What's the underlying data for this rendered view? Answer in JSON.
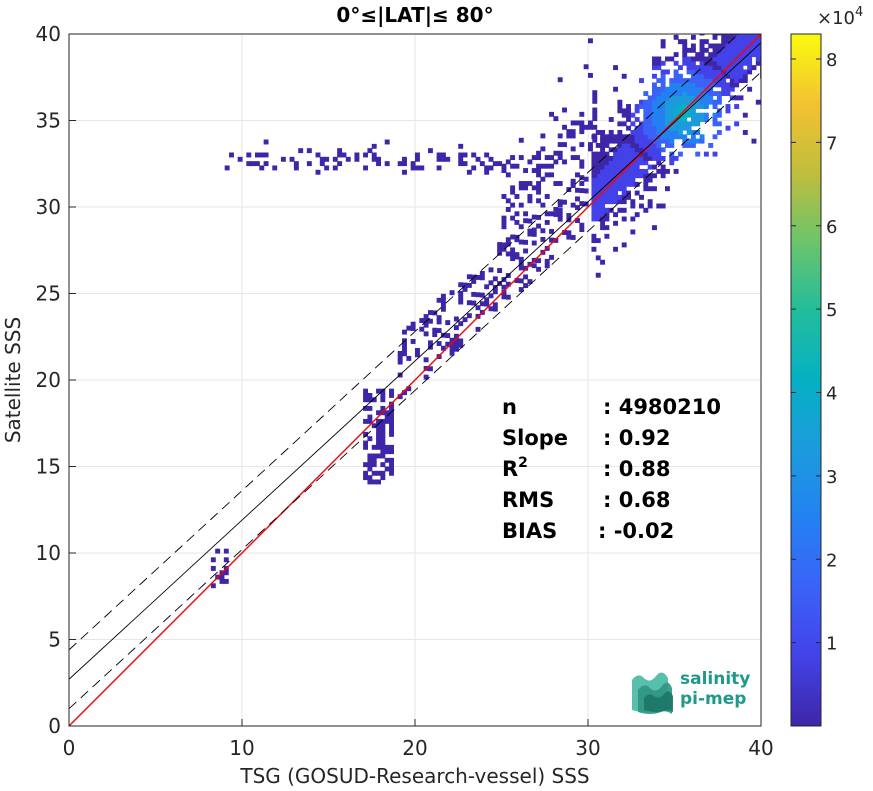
{
  "chart_data": {
    "type": "heatmap",
    "title": "0°≤|LAT|≤ 80°",
    "xlabel": "TSG (GOSUD-Research-vessel) SSS",
    "ylabel": "Satellite SSS",
    "xlim": [
      0,
      40
    ],
    "ylim": [
      0,
      40
    ],
    "xticks": [
      0,
      10,
      20,
      30,
      40
    ],
    "yticks": [
      0,
      5,
      10,
      15,
      20,
      25,
      30,
      35,
      40
    ],
    "grid": true,
    "colormap": "parula",
    "colorbar": {
      "range": [
        0,
        83000
      ],
      "ticks": [
        1,
        2,
        3,
        4,
        5,
        6,
        7,
        8
      ],
      "multiplier": "×10",
      "exponent": "4"
    },
    "lines": [
      {
        "kind": "identity",
        "color": "#ff0000",
        "slope": 1,
        "intercept": 0
      },
      {
        "kind": "regression",
        "color": "#000000",
        "style": "solid",
        "slope": 0.92,
        "intercept": 2.7
      },
      {
        "kind": "regression-upper",
        "color": "#000000",
        "style": "dashed",
        "slope": 0.92,
        "intercept": 4.4
      },
      {
        "kind": "regression-lower",
        "color": "#000000",
        "style": "dashed",
        "slope": 0.92,
        "intercept": 1.0
      }
    ],
    "density_regions": [
      {
        "x": [
          30.2,
          40
        ],
        "y_center_offset": 0.6,
        "spread": 3.0,
        "weight": 1.0
      },
      {
        "x": [
          25,
          30.5
        ],
        "y_center_offset": 4.5,
        "spread": 2.5,
        "weight": 0.35
      },
      {
        "x": [
          9,
          25
        ],
        "y_center": 32.6,
        "spread": 0.6,
        "weight": 0.15
      },
      {
        "x": [
          17,
          18.6
        ],
        "y_range": [
          14,
          19.5
        ],
        "weight": 0.3
      },
      {
        "x": [
          8.2,
          9.0
        ],
        "y_range": [
          8,
          10.2
        ],
        "weight": 0.2
      }
    ],
    "peak": {
      "x": 35.4,
      "y": 35.3
    },
    "stats": [
      {
        "label": "n",
        "value": ": 4980210"
      },
      {
        "label": "Slope",
        "value": ": 0.92"
      },
      {
        "label": "R",
        "sup": "2",
        "value": ": 0.88"
      },
      {
        "label": "RMS",
        "value": ": 0.68"
      },
      {
        "label": "BIAS",
        "value": ": -0.02"
      }
    ]
  },
  "logo": {
    "line1": "salinity",
    "line2": "pi-mep"
  },
  "colors": {
    "axis": "#262626",
    "grid": "#e6e6e6",
    "identity": "#ff0000",
    "low_density": "#3e26a8"
  }
}
